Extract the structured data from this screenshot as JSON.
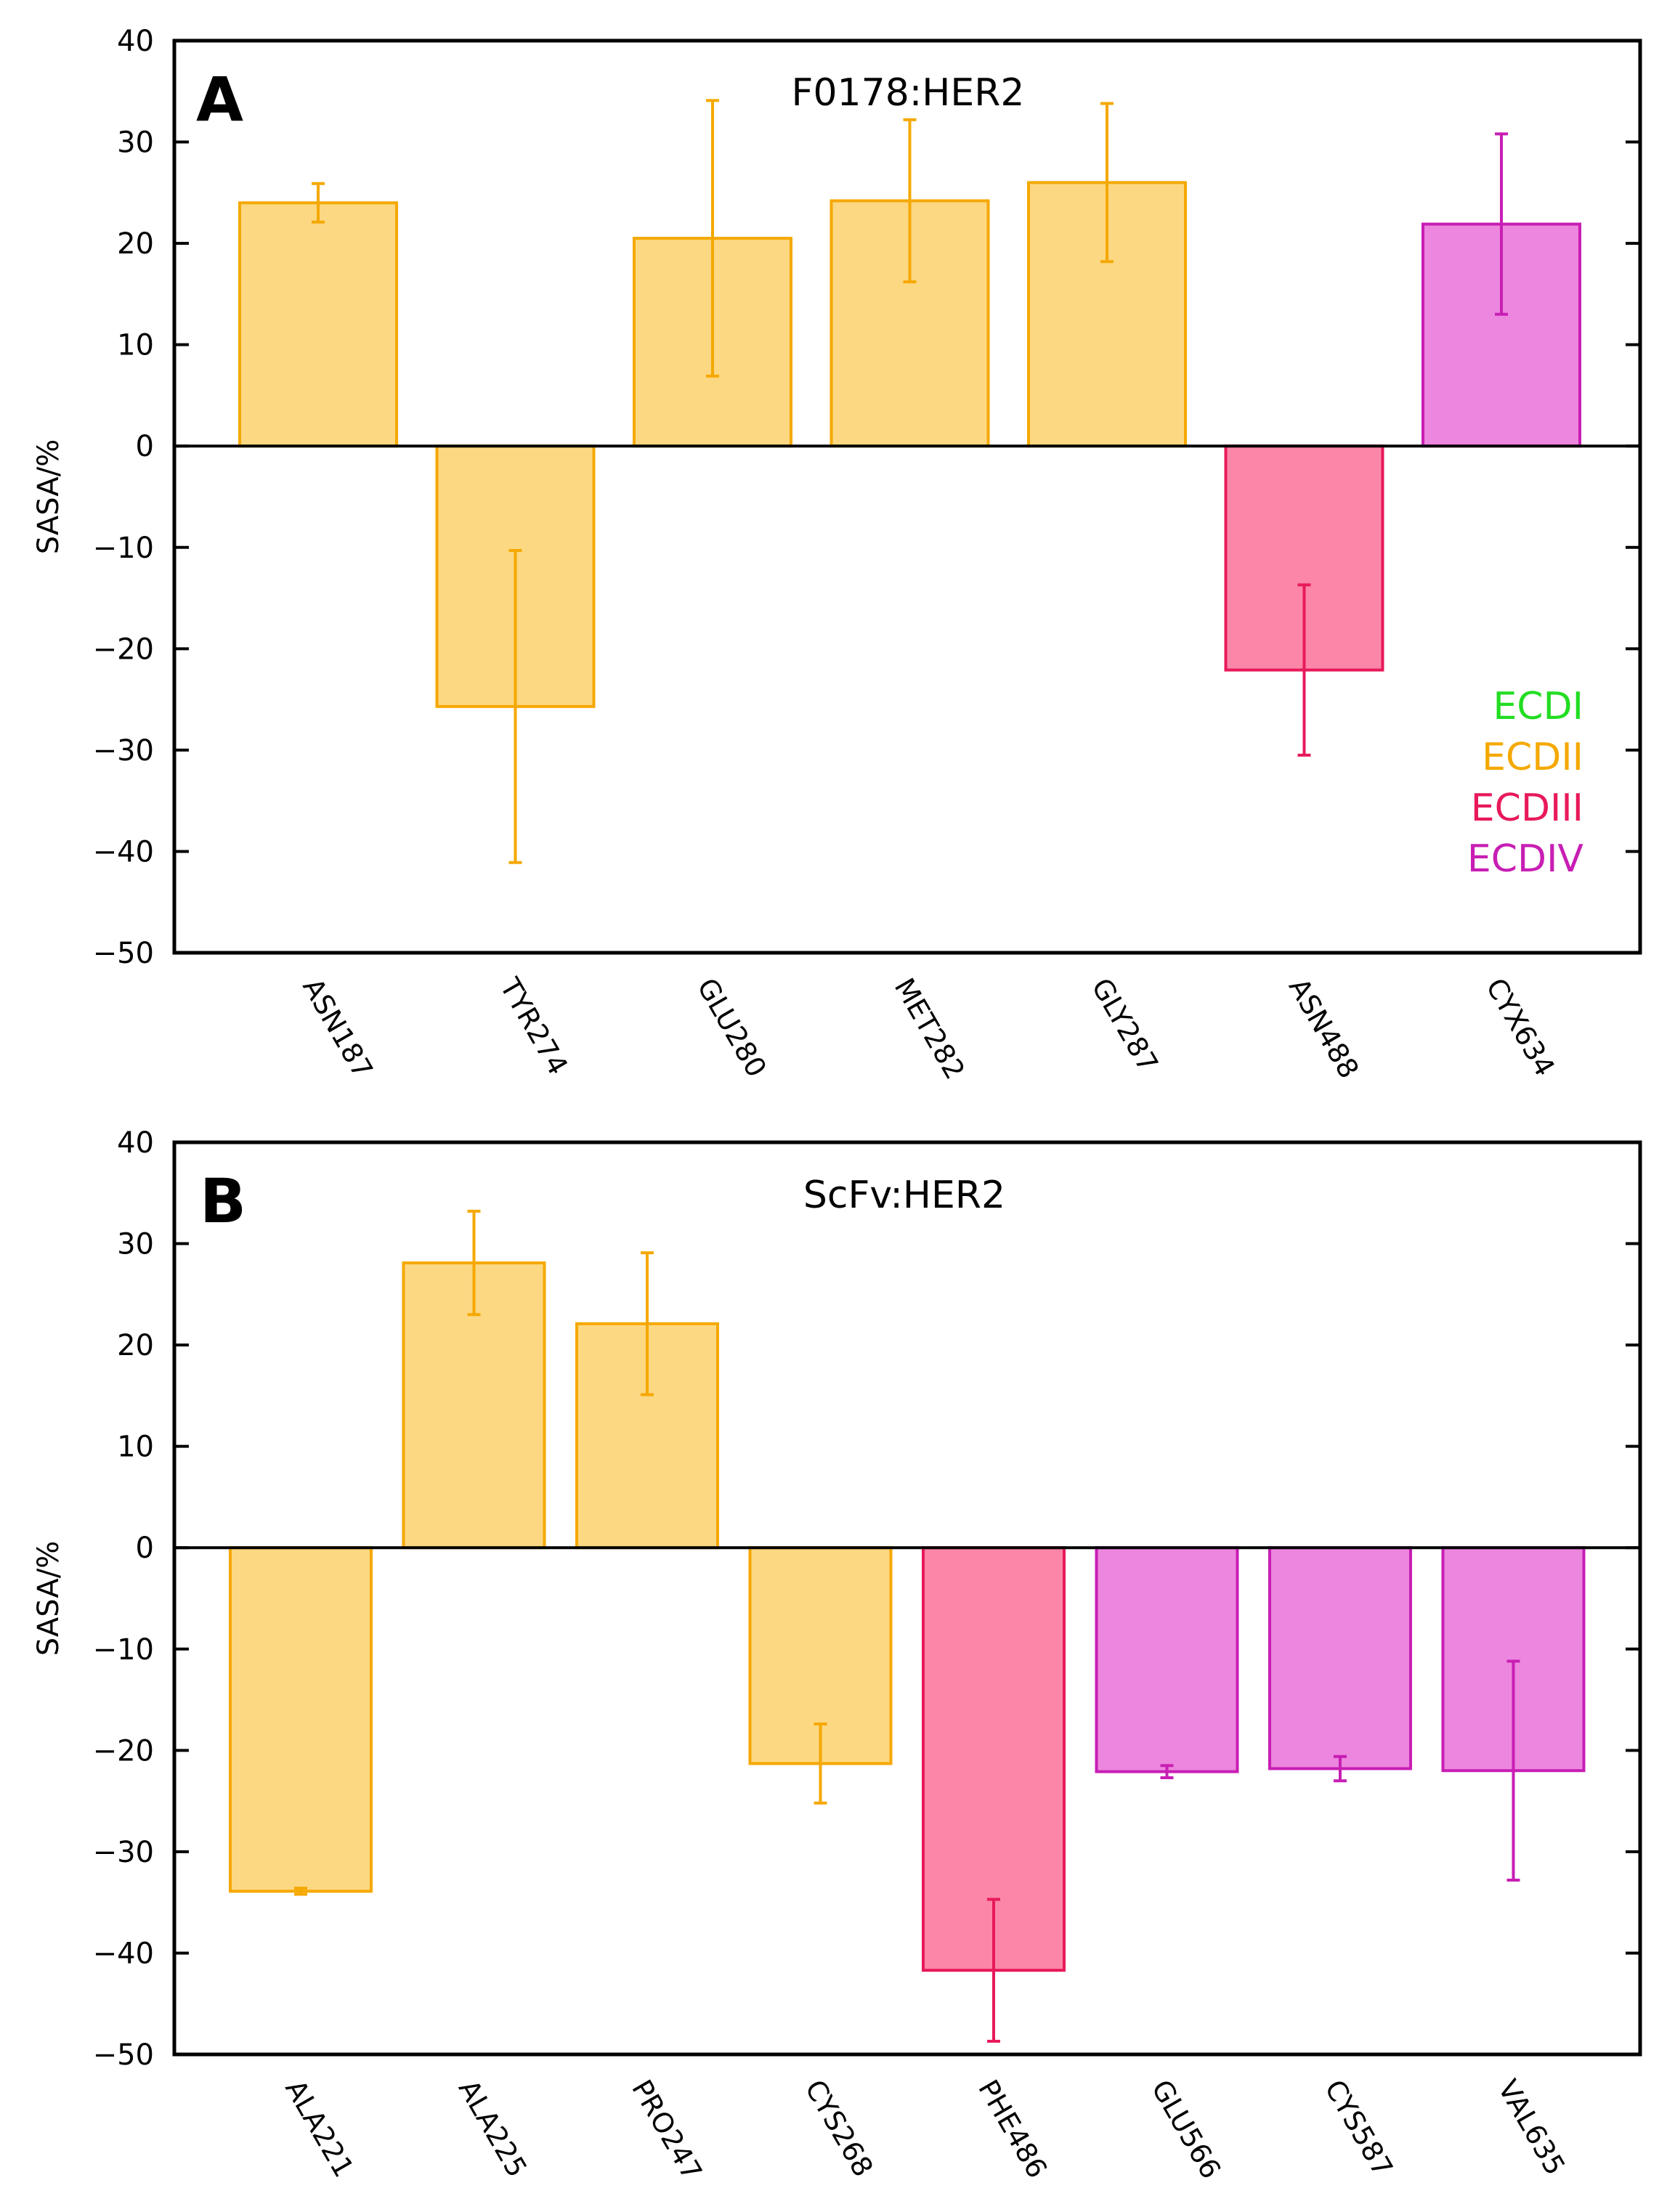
{
  "chart_data": [
    {
      "type": "bar",
      "panel_label": "A",
      "title": "F0178:HER2",
      "ylabel": "SASA/%",
      "xlabel": "",
      "ylim": [
        -50,
        40
      ],
      "yticks": [
        40,
        30,
        20,
        10,
        0,
        -10,
        -20,
        -30,
        -40,
        -50
      ],
      "ytick_labels": [
        "40",
        "30",
        "20",
        "10",
        "0",
        "−10",
        "−20",
        "−30",
        "−40",
        "−50"
      ],
      "categories": [
        "ASN187",
        "TYR274",
        "GLU280",
        "MET282",
        "GLY287",
        "ASN488",
        "CYX634"
      ],
      "values": [
        24.0,
        -25.7,
        20.5,
        24.2,
        26.0,
        -22.1,
        21.9
      ],
      "errors": [
        1.9,
        15.4,
        13.6,
        8.0,
        7.8,
        8.4,
        8.9
      ],
      "domains": [
        "ECDII",
        "ECDII",
        "ECDII",
        "ECDII",
        "ECDII",
        "ECDIII",
        "ECDIV"
      ],
      "legend": {
        "position": "lower-right",
        "entries": [
          {
            "label": "ECDI",
            "color": "#22dd22"
          },
          {
            "label": "ECDII",
            "color": "#f5a800"
          },
          {
            "label": "ECDIII",
            "color": "#e8195a"
          },
          {
            "label": "ECDIV",
            "color": "#c81eb4"
          }
        ]
      },
      "grid": false
    },
    {
      "type": "bar",
      "panel_label": "B",
      "title": "ScFv:HER2",
      "ylabel": "SASA/%",
      "xlabel": "",
      "ylim": [
        -50,
        40
      ],
      "yticks": [
        40,
        30,
        20,
        10,
        0,
        -10,
        -20,
        -30,
        -40,
        -50
      ],
      "ytick_labels": [
        "40",
        "30",
        "20",
        "10",
        "0",
        "−10",
        "−20",
        "−30",
        "−40",
        "−50"
      ],
      "categories": [
        "ALA221",
        "ALA225",
        "PRO247",
        "CYS268",
        "PHE486",
        "GLU566",
        "CYS587",
        "VAL635"
      ],
      "values": [
        -33.9,
        28.1,
        22.1,
        -21.3,
        -41.7,
        -22.1,
        -21.8,
        -22.0
      ],
      "errors": [
        0.3,
        5.1,
        7.0,
        3.9,
        7.0,
        0.6,
        1.2,
        10.8
      ],
      "domains": [
        "ECDII",
        "ECDII",
        "ECDII",
        "ECDII",
        "ECDIII",
        "ECDIV",
        "ECDIV",
        "ECDIV"
      ],
      "grid": false
    }
  ],
  "colors": {
    "ECDI": {
      "fill": "#90ee90",
      "stroke": "#22dd22"
    },
    "ECDII": {
      "fill": "#fdd882",
      "stroke": "#f5a800"
    },
    "ECDIII": {
      "fill": "#fc86a7",
      "stroke": "#e8195a"
    },
    "ECDIV": {
      "fill": "#ec86de",
      "stroke": "#c81eb4"
    }
  }
}
